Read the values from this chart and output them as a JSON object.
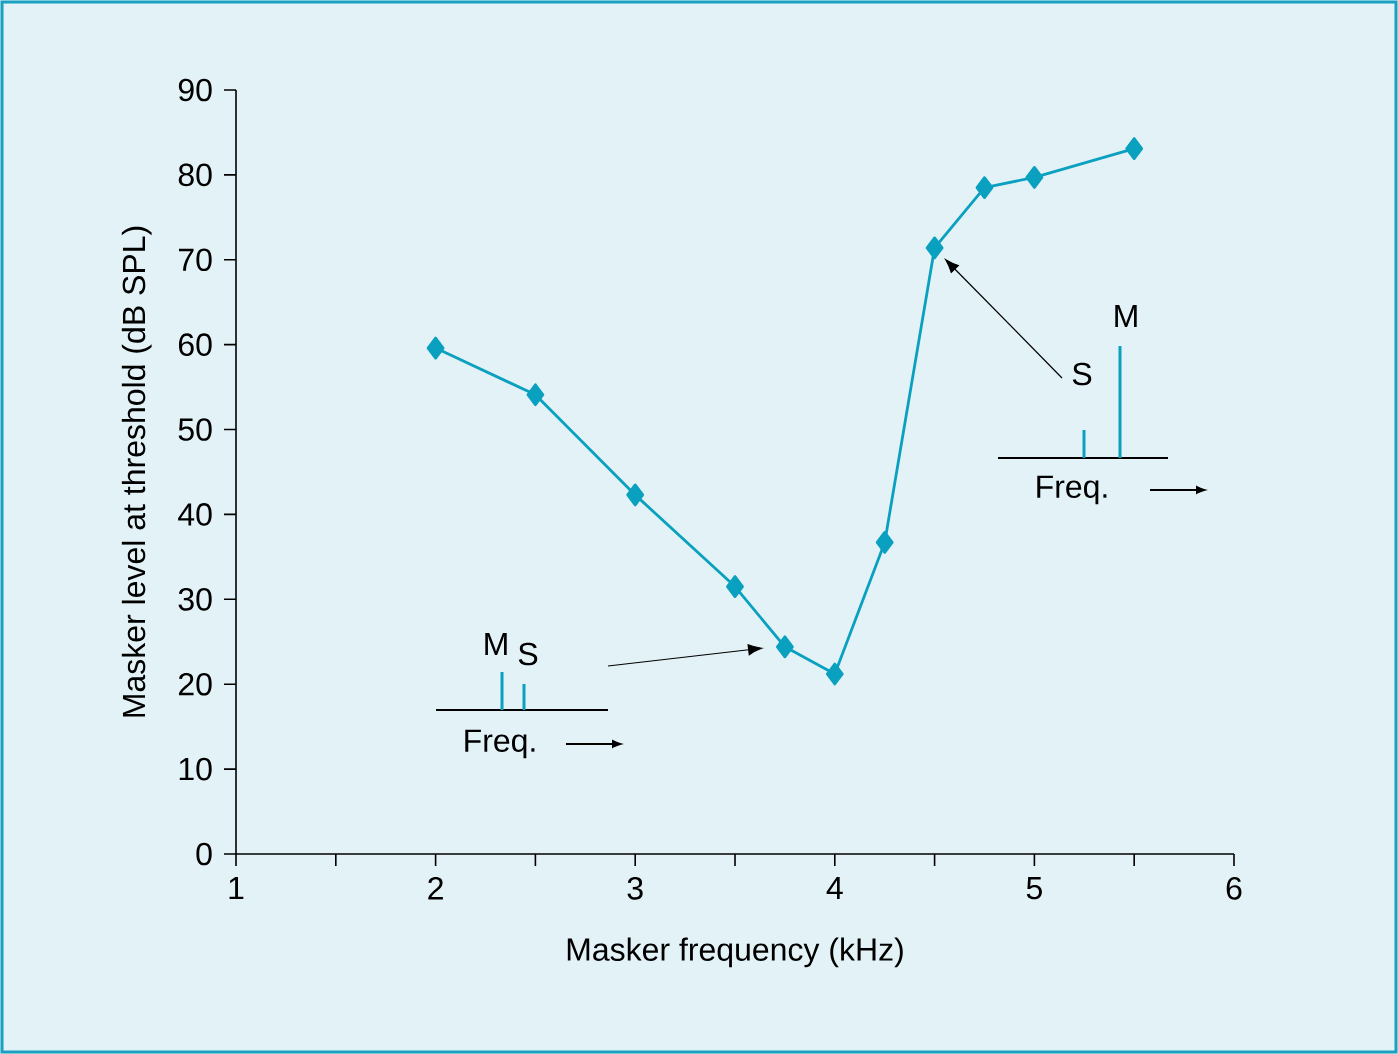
{
  "chart_data": {
    "type": "line",
    "xlabel": "Masker frequency (kHz)",
    "ylabel": "Masker level at threshold (dB SPL)",
    "x": [
      2,
      2.5,
      3,
      3.5,
      3.75,
      4,
      4.25,
      4.5,
      4.75,
      5,
      5.5
    ],
    "series": [
      {
        "color": "#0aa0bf",
        "values": [
          59.6,
          54.1,
          42.3,
          31.5,
          24.4,
          21.2,
          36.7,
          71.4,
          78.5,
          79.7,
          83.1
        ]
      }
    ],
    "xlim": [
      1,
      6
    ],
    "xticks": [
      1,
      {
        "value": 1.5,
        "label": null
      },
      2,
      {
        "value": 2.5,
        "label": null
      },
      3,
      {
        "value": 3.5,
        "label": null
      },
      4,
      {
        "value": 4.5,
        "label": null
      },
      5,
      {
        "value": 5.5,
        "label": null
      },
      6
    ],
    "ylim": [
      0,
      90
    ],
    "yticks": [
      0,
      10,
      20,
      30,
      40,
      50,
      60,
      70,
      80,
      90
    ],
    "marker": "diamond",
    "line_style": "solid",
    "annotations": [
      "M",
      "S",
      "Freq.",
      "S",
      "M",
      "Freq."
    ]
  }
}
